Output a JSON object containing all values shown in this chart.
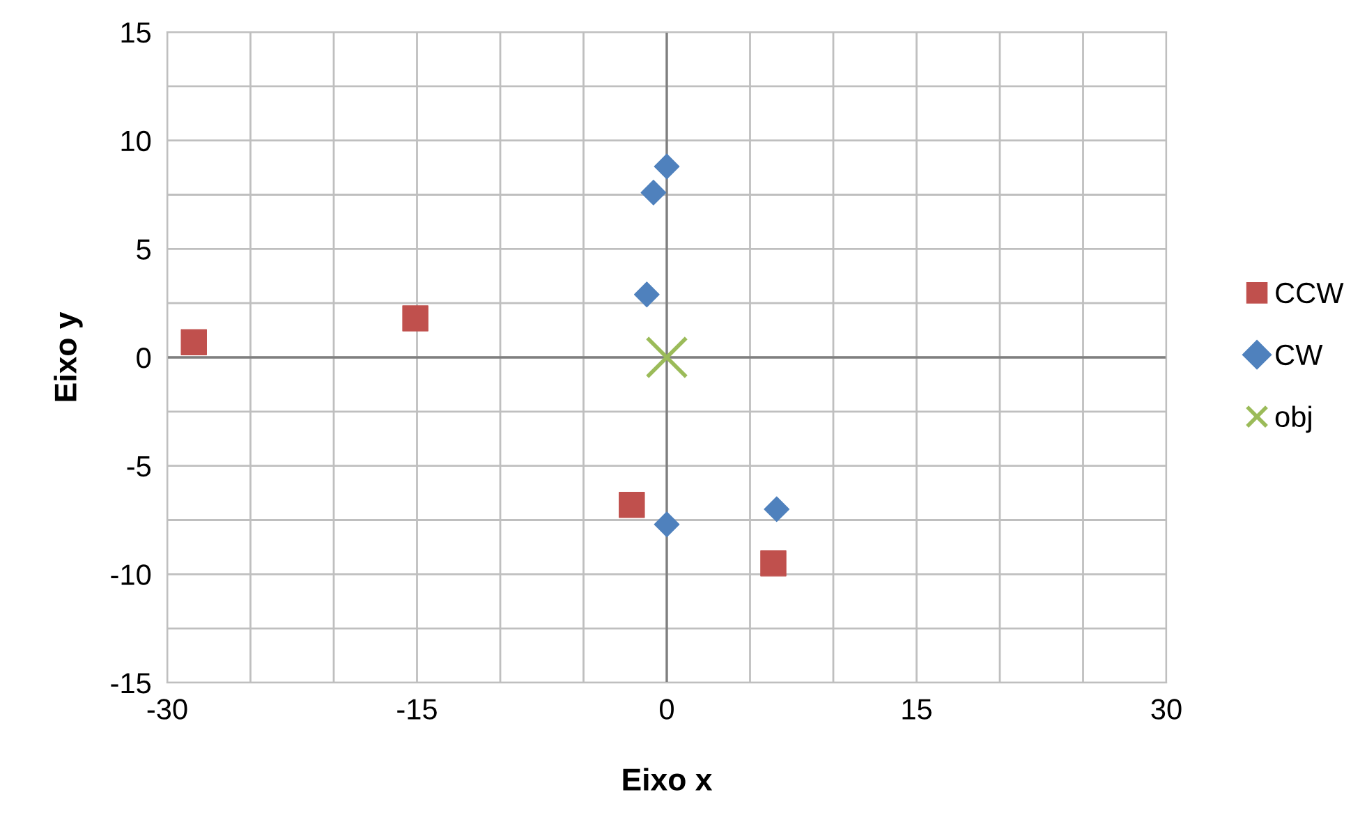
{
  "chart_data": {
    "type": "scatter",
    "xlabel": "Eixo x",
    "ylabel": "Eixo y",
    "xlim": [
      -30,
      30
    ],
    "ylim": [
      -15,
      15
    ],
    "xticks": [
      -30,
      {
        "value": -25,
        "label": null
      },
      {
        "value": -20,
        "label": null
      },
      -15,
      {
        "value": -10,
        "label": null
      },
      {
        "value": -5,
        "label": null
      },
      0,
      {
        "value": 5,
        "label": null
      },
      {
        "value": 10,
        "label": null
      },
      15,
      {
        "value": 20,
        "label": null
      },
      {
        "value": 25,
        "label": null
      },
      30
    ],
    "yticks": [
      -15,
      {
        "value": -12.5,
        "label": null
      },
      -10,
      {
        "value": -7.5,
        "label": null
      },
      -5,
      {
        "value": -2.5,
        "label": null
      },
      0,
      {
        "value": 2.5,
        "label": null
      },
      5,
      {
        "value": 7.5,
        "label": null
      },
      10,
      {
        "value": 12.5,
        "label": null
      },
      15
    ],
    "grid": true,
    "legend": "right",
    "series": [
      {
        "name": "CCW",
        "color": "#c0504d",
        "marker": "square",
        "x": [
          -28.4,
          -15.1,
          -2.1,
          6.4
        ],
        "values": [
          0.7,
          1.8,
          -6.8,
          -9.5
        ]
      },
      {
        "name": "CW",
        "color": "#4f81bd",
        "marker": "diamond",
        "x": [
          0,
          -0.8,
          -1.2,
          0,
          6.6
        ],
        "values": [
          8.8,
          7.6,
          2.9,
          -7.7,
          -7.0
        ]
      },
      {
        "name": "obj",
        "color": "#9bbb59",
        "marker": "cross",
        "x": [
          0
        ],
        "values": [
          0
        ]
      }
    ]
  }
}
